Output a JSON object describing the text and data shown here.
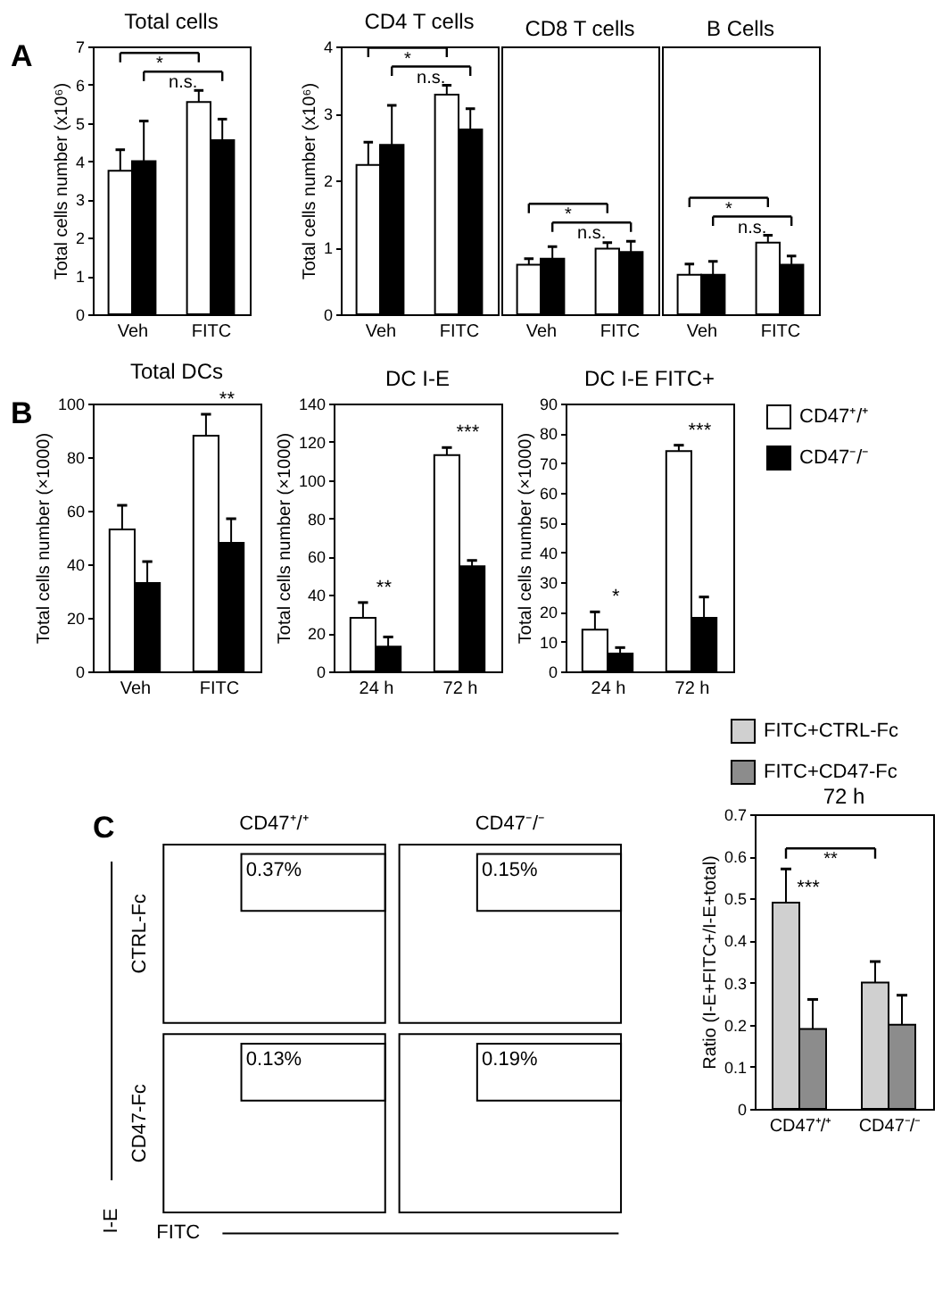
{
  "chart_data": [
    {
      "type": "bar",
      "title": "Total cells",
      "ylabel": "Total cells number (x10⁶)",
      "categories": [
        "Veh",
        "FITC"
      ],
      "series": [
        {
          "color": "#ffffff",
          "values": [
            3.75,
            5.55
          ],
          "errors": [
            [
              3.75,
              4.3
            ],
            [
              5.55,
              5.85
            ]
          ]
        },
        {
          "color": "#000000",
          "values": [
            4.0,
            4.55
          ],
          "errors": [
            [
              4.0,
              5.05
            ],
            [
              4.55,
              5.1
            ]
          ]
        }
      ],
      "ylim": [
        0,
        7
      ],
      "yticks": [
        0,
        1,
        2,
        3,
        4,
        5,
        6,
        7
      ],
      "annotations": [
        "A",
        "*",
        "n.s."
      ]
    },
    {
      "type": "bar",
      "title": "CD4 T cells",
      "ylabel": "Total cells number (x10⁶)",
      "categories": [
        "Veh",
        "FITC"
      ],
      "series": [
        {
          "color": "#ffffff",
          "values": [
            2.23,
            3.28
          ],
          "errors": [
            [
              2.23,
              2.57
            ],
            [
              3.28,
              3.42
            ]
          ]
        },
        {
          "color": "#000000",
          "values": [
            2.53,
            2.76
          ],
          "errors": [
            [
              2.53,
              3.12
            ],
            [
              2.76,
              3.07
            ]
          ]
        }
      ],
      "ylim": [
        0,
        4
      ],
      "yticks": [
        0,
        1,
        2,
        3,
        4
      ],
      "annotations": [
        "*",
        "n.s."
      ]
    },
    {
      "type": "bar",
      "title": "CD8 T cells",
      "categories": [
        "Veh",
        "FITC"
      ],
      "series": [
        {
          "color": "#ffffff",
          "values": [
            0.74,
            0.98
          ],
          "errors": [
            [
              0.74,
              0.83
            ],
            [
              0.98,
              1.07
            ]
          ]
        },
        {
          "color": "#000000",
          "values": [
            0.83,
            0.93
          ],
          "errors": [
            [
              0.83,
              1.01
            ],
            [
              0.93,
              1.09
            ]
          ]
        }
      ],
      "ylim": [
        0,
        4
      ],
      "tick_labels": "x",
      "annotations": [
        "*",
        "n.s."
      ]
    },
    {
      "type": "bar",
      "title": "B Cells",
      "categories": [
        "Veh",
        "FITC"
      ],
      "series": [
        {
          "color": "#ffffff",
          "values": [
            0.59,
            1.07
          ],
          "errors": [
            [
              0.59,
              0.75
            ],
            [
              1.07,
              1.18
            ]
          ]
        },
        {
          "color": "#000000",
          "values": [
            0.59,
            0.74
          ],
          "errors": [
            [
              0.59,
              0.79
            ],
            [
              0.74,
              0.87
            ]
          ]
        }
      ],
      "ylim": [
        0,
        4
      ],
      "tick_labels": "x",
      "annotations": [
        "*",
        "n.s."
      ]
    },
    {
      "type": "bar",
      "title": "Total DCs",
      "ylabel": "Total cells number (×1000)",
      "categories": [
        "Veh",
        "FITC"
      ],
      "series": [
        {
          "color": "#ffffff",
          "values": [
            53,
            88
          ],
          "errors": [
            [
              53,
              62
            ],
            [
              88,
              96
            ]
          ]
        },
        {
          "color": "#000000",
          "values": [
            33,
            48
          ],
          "errors": [
            [
              33,
              41
            ],
            [
              48,
              57
            ]
          ]
        }
      ],
      "ylim": [
        0,
        100
      ],
      "yticks": [
        0,
        20,
        40,
        60,
        80,
        100
      ],
      "annotations": [
        "B",
        {
          "text": "**",
          "x": "FITC",
          "y": 96
        }
      ]
    },
    {
      "type": "bar",
      "title": "DC I-E",
      "ylabel": "Total cells number (×1000)",
      "categories": [
        "24 h",
        "72 h"
      ],
      "series": [
        {
          "color": "#ffffff",
          "values": [
            28,
            113
          ],
          "errors": [
            [
              28,
              36
            ],
            [
              113,
              117
            ]
          ]
        },
        {
          "color": "#000000",
          "values": [
            13,
            55
          ],
          "errors": [
            [
              13,
              18
            ],
            [
              55,
              58
            ]
          ]
        }
      ],
      "ylim": [
        0,
        140
      ],
      "yticks": [
        0,
        20,
        40,
        60,
        80,
        100,
        120,
        140
      ],
      "annotations": [
        {
          "text": "**",
          "x": "24 h",
          "y": 36
        },
        {
          "text": "***",
          "x": "72 h",
          "y": 117
        }
      ]
    },
    {
      "type": "bar",
      "title": "DC I-E FITC+",
      "ylabel": "Total cells number (×1000)",
      "categories": [
        "24 h",
        "72 h"
      ],
      "series": [
        {
          "name": "CD47⁺/⁺",
          "color": "#ffffff",
          "values": [
            14,
            74
          ],
          "errors": [
            [
              14,
              20
            ],
            [
              74,
              76
            ]
          ]
        },
        {
          "name": "CD47⁻/⁻",
          "color": "#000000",
          "values": [
            6,
            18
          ],
          "errors": [
            [
              6,
              8
            ],
            [
              18,
              25
            ]
          ]
        }
      ],
      "ylim": [
        0,
        90
      ],
      "yticks": [
        0,
        10,
        20,
        30,
        40,
        50,
        60,
        70,
        80,
        90
      ],
      "legend": "right",
      "annotations": [
        {
          "text": "*",
          "x": "24 h",
          "y": 20
        },
        {
          "text": "***",
          "x": "72 h",
          "y": 76
        }
      ]
    },
    {
      "type": "other",
      "categories": [
        "CD47⁺/⁺",
        "CD47⁻/⁻"
      ],
      "y_categories": [
        "CTRL-Fc",
        "CD47-Fc"
      ],
      "xlabel": "FITC",
      "ylabel": "I-E",
      "annotations": [
        "C",
        "0.37%",
        "0.15%",
        "0.13%",
        "0.19%"
      ]
    },
    {
      "type": "bar",
      "title": "72 h",
      "ylabel": "Ratio (I-E+FITC+/I-E+total)",
      "categories": [
        "CD47⁺/⁺",
        "CD47⁻/⁻"
      ],
      "series": [
        {
          "name": "FITC+CTRL-Fc",
          "color": "#d0d0d0",
          "values": [
            0.49,
            0.3
          ],
          "errors": [
            [
              0.49,
              0.57
            ],
            [
              0.3,
              0.35
            ]
          ]
        },
        {
          "name": "FITC+CD47-Fc",
          "color": "#8c8c8c",
          "values": [
            0.19,
            0.2
          ],
          "errors": [
            [
              0.19,
              0.26
            ],
            [
              0.2,
              0.27
            ]
          ]
        }
      ],
      "ylim": [
        0,
        0.7
      ],
      "yticks": [
        0,
        0.1,
        0.2,
        0.3,
        0.4,
        0.5,
        0.6,
        0.7
      ],
      "legend": "top",
      "annotations": [
        {
          "text": "***",
          "x": "CD47⁺/⁺",
          "y": 0.49
        },
        "**"
      ]
    }
  ]
}
